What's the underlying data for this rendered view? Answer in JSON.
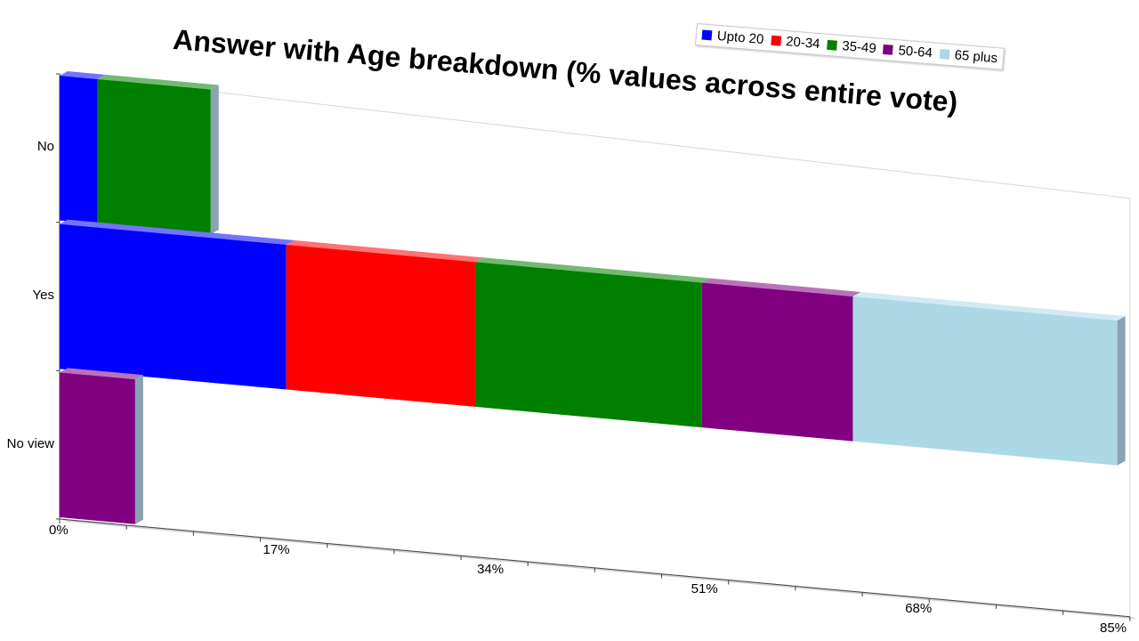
{
  "chart_data": {
    "type": "bar",
    "orientation": "horizontal",
    "stacked": true,
    "title": "Answer with Age breakdown (% values across entire vote)",
    "categories": [
      "No",
      "Yes",
      "No view"
    ],
    "series": [
      {
        "name": "Upto 20",
        "color": "#0000ff",
        "values": [
          3,
          18,
          0
        ]
      },
      {
        "name": "20-34",
        "color": "#ff0000",
        "values": [
          0,
          15,
          0
        ]
      },
      {
        "name": "35-49",
        "color": "#008000",
        "values": [
          9,
          18,
          0
        ]
      },
      {
        "name": "50-64",
        "color": "#800080",
        "values": [
          0,
          12,
          6
        ]
      },
      {
        "name": "65 plus",
        "color": "#add8e6",
        "values": [
          0,
          21,
          0
        ]
      }
    ],
    "xlim": [
      0,
      85
    ],
    "xticks": [
      "0%",
      "17%",
      "34%",
      "51%",
      "68%",
      "85%"
    ],
    "legend_position": "top-right",
    "three_d": true
  }
}
